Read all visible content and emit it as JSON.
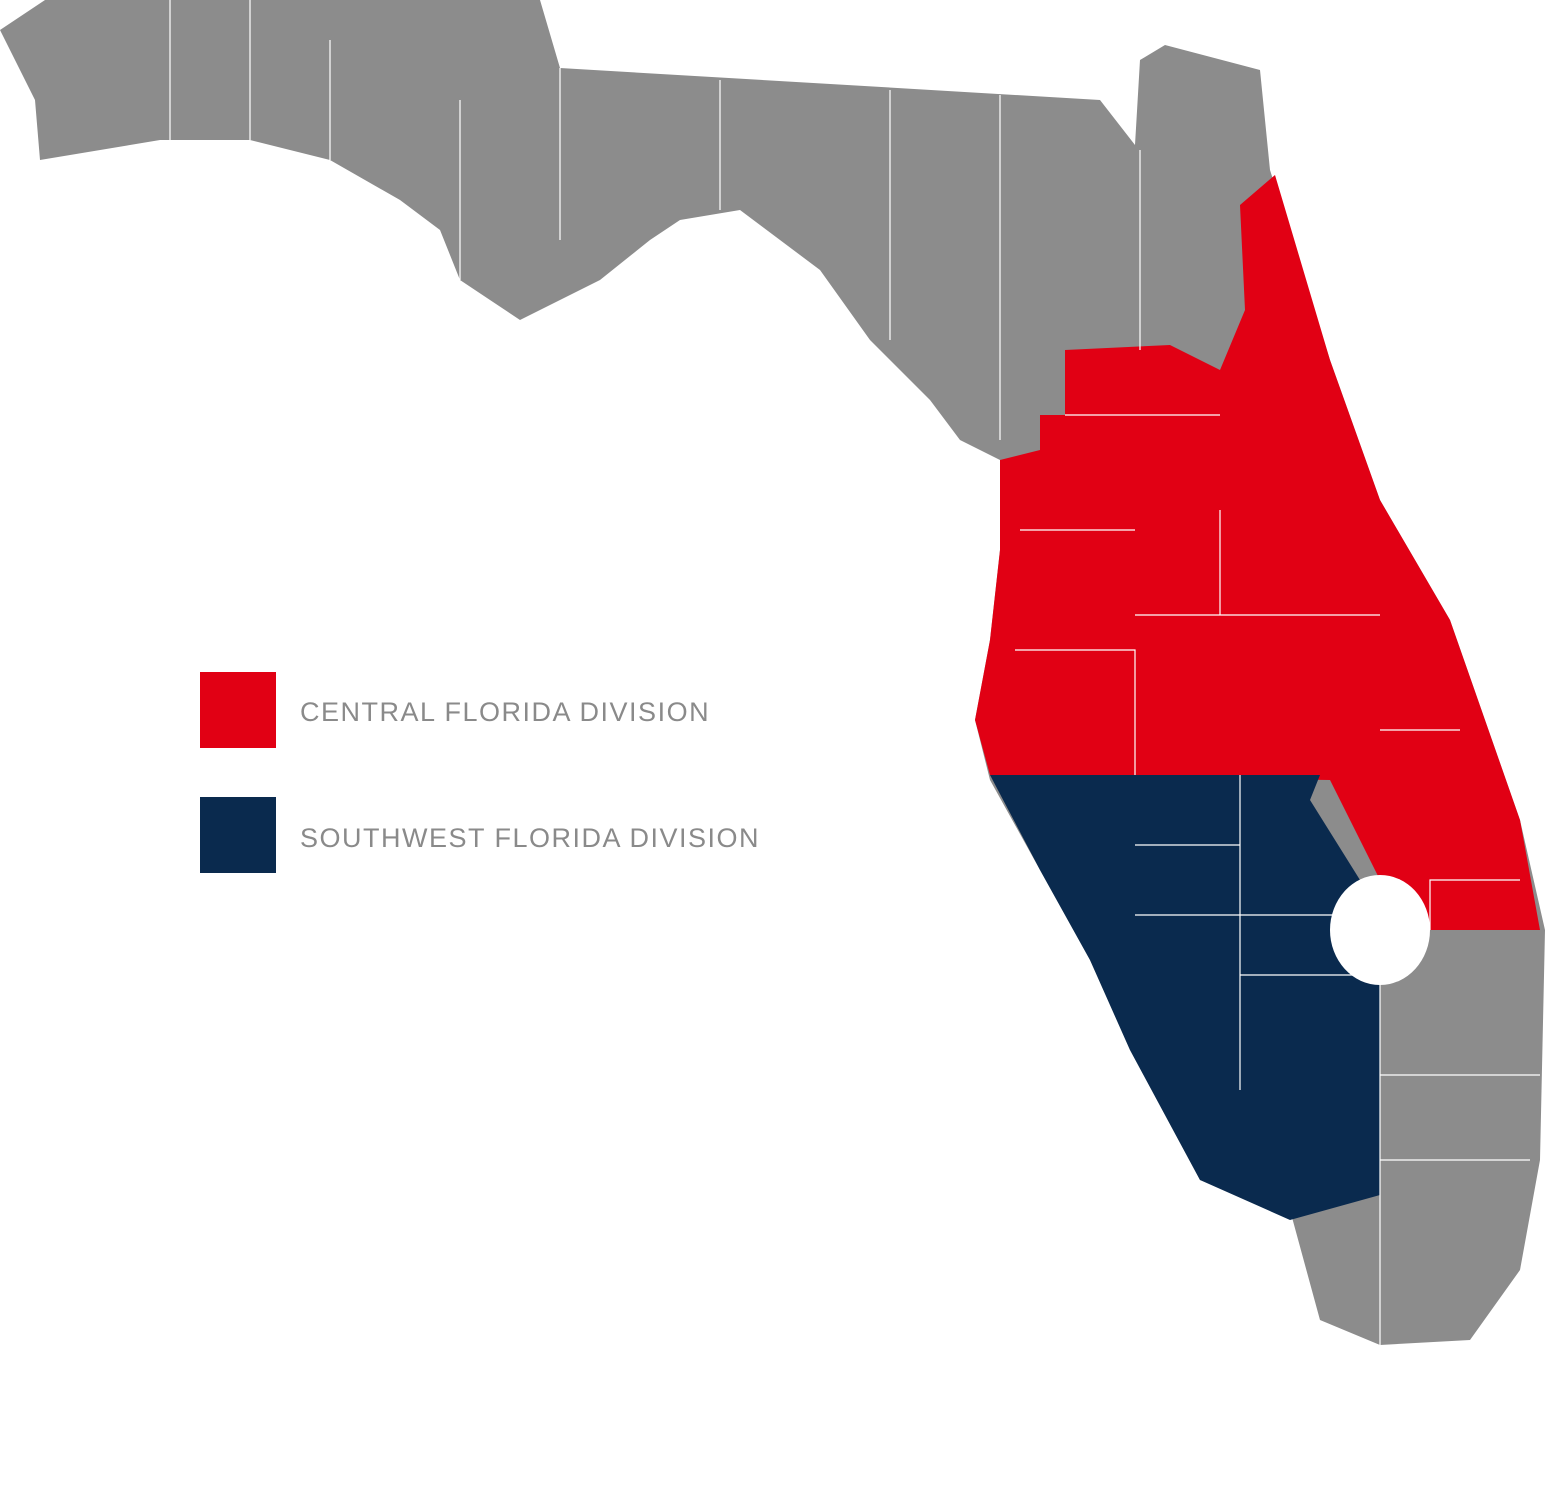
{
  "legend": [
    {
      "label": "CENTRAL FLORIDA DIVISION",
      "color": "#e10014"
    },
    {
      "label": "SOUTHWEST FLORIDA DIVISION",
      "color": "#0a2a4e"
    }
  ]
}
